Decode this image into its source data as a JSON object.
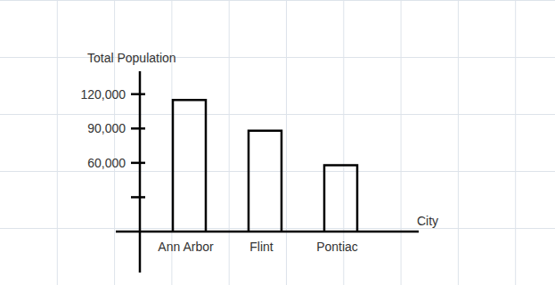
{
  "chart_data": {
    "type": "bar",
    "x_label": "City",
    "y_label": "Total Population",
    "categories": [
      "Ann Arbor",
      "Flint",
      "Pontiac"
    ],
    "values": [
      115000,
      88000,
      58000
    ],
    "color": "#000000",
    "ylim": [
      0,
      140000
    ],
    "yticks": [
      {
        "value": 30000,
        "label": null
      },
      {
        "value": 60000,
        "label": "60,000"
      },
      {
        "value": 90000,
        "label": "90,000"
      },
      {
        "value": 120000,
        "label": "120,000"
      }
    ]
  }
}
